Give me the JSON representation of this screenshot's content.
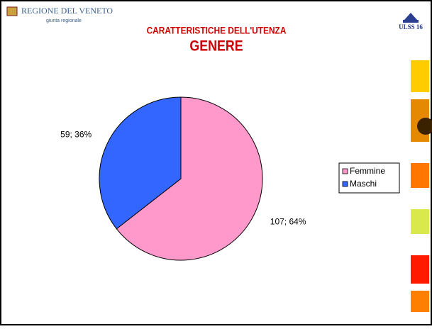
{
  "header": {
    "region": "REGIONE DEL VENETO",
    "region_sub": "giunta regionale",
    "logo": "ULSS 16"
  },
  "chart_data": {
    "type": "pie",
    "title": "CARATTERISTICHE DELL'UTENZA",
    "subtitle": "GENERE",
    "categories": [
      "Femmine",
      "Maschi"
    ],
    "values": [
      107,
      59
    ],
    "value_labels": [
      "107; 64%",
      "59; 36%"
    ],
    "colors": [
      "#ff99cc",
      "#3366ff"
    ],
    "legend": "right"
  }
}
